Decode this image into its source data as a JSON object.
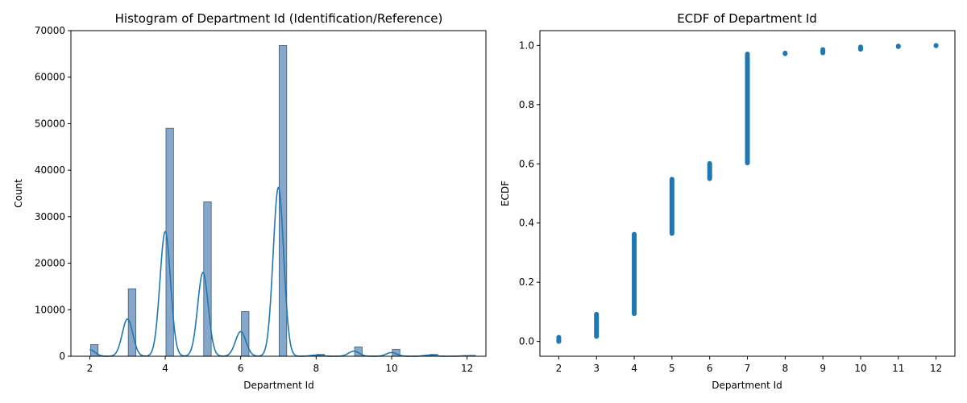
{
  "chart_data": [
    {
      "type": "bar",
      "title": "Histogram of Department Id (Identification/Reference)",
      "xlabel": "Department Id",
      "ylabel": "Count",
      "xlim": [
        1.5,
        12.5
      ],
      "ylim": [
        0,
        70000
      ],
      "xticks": [
        2,
        4,
        6,
        8,
        10,
        12
      ],
      "yticks": [
        0,
        10000,
        20000,
        30000,
        40000,
        50000,
        60000,
        70000
      ],
      "bar_color": "#86a7c9",
      "bar_edge_color": "#3d5a78",
      "line_color": "#1f77b4",
      "bins": [
        {
          "x": 2,
          "count": 2500
        },
        {
          "x": 3,
          "count": 14500
        },
        {
          "x": 4,
          "count": 49000
        },
        {
          "x": 5,
          "count": 33200
        },
        {
          "x": 6,
          "count": 9600
        },
        {
          "x": 7,
          "count": 66800
        },
        {
          "x": 8,
          "count": 400
        },
        {
          "x": 9,
          "count": 2000
        },
        {
          "x": 10,
          "count": 1500
        },
        {
          "x": 11,
          "count": 400
        },
        {
          "x": 12,
          "count": 200
        }
      ],
      "kde": [
        {
          "x": 2,
          "height": 1400
        },
        {
          "x": 3,
          "height": 8000
        },
        {
          "x": 4,
          "height": 26800
        },
        {
          "x": 5,
          "height": 18000
        },
        {
          "x": 6,
          "height": 5300
        },
        {
          "x": 7,
          "height": 36300
        },
        {
          "x": 8,
          "height": 250
        },
        {
          "x": 9,
          "height": 1100
        },
        {
          "x": 10,
          "height": 800
        },
        {
          "x": 11,
          "height": 250
        },
        {
          "x": 12,
          "height": 120
        }
      ]
    },
    {
      "type": "scatter",
      "title": "ECDF of Department Id",
      "xlabel": "Department Id",
      "ylabel": "ECDF",
      "xlim": [
        1.5,
        12.5
      ],
      "ylim": [
        -0.05,
        1.05
      ],
      "xticks": [
        2,
        3,
        4,
        5,
        6,
        7,
        8,
        9,
        10,
        11,
        12
      ],
      "yticks": [
        0.0,
        0.2,
        0.4,
        0.6,
        0.8,
        1.0
      ],
      "color": "#1f77b4",
      "segments": [
        {
          "x": 2,
          "y_from": 0.0,
          "y_to": 0.014
        },
        {
          "x": 3,
          "y_from": 0.017,
          "y_to": 0.092
        },
        {
          "x": 4,
          "y_from": 0.094,
          "y_to": 0.362
        },
        {
          "x": 5,
          "y_from": 0.365,
          "y_to": 0.548
        },
        {
          "x": 6,
          "y_from": 0.55,
          "y_to": 0.601
        },
        {
          "x": 7,
          "y_from": 0.603,
          "y_to": 0.971
        },
        {
          "x": 8,
          "y_from": 0.972,
          "y_to": 0.974
        },
        {
          "x": 9,
          "y_from": 0.975,
          "y_to": 0.986
        },
        {
          "x": 10,
          "y_from": 0.987,
          "y_to": 0.995
        },
        {
          "x": 11,
          "y_from": 0.996,
          "y_to": 0.998
        },
        {
          "x": 12,
          "y_from": 0.999,
          "y_to": 1.0
        }
      ]
    }
  ]
}
